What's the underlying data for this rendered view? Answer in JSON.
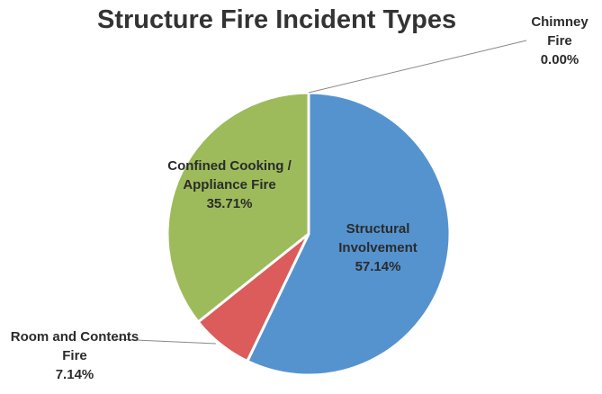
{
  "chart_data": {
    "type": "pie",
    "title": "Structure Fire Incident Types",
    "categories": [
      "Structural Involvement",
      "Room and Contents Fire",
      "Confined Cooking / Appliance Fire",
      "Chimney Fire"
    ],
    "values": [
      57.14,
      7.14,
      35.71,
      0.0
    ],
    "value_labels": [
      "57.14%",
      "7.14%",
      "35.71%",
      "0.00%"
    ],
    "colors": [
      "#5593cf",
      "#dc5b5b",
      "#9dbb5b",
      "#8064a2"
    ]
  }
}
